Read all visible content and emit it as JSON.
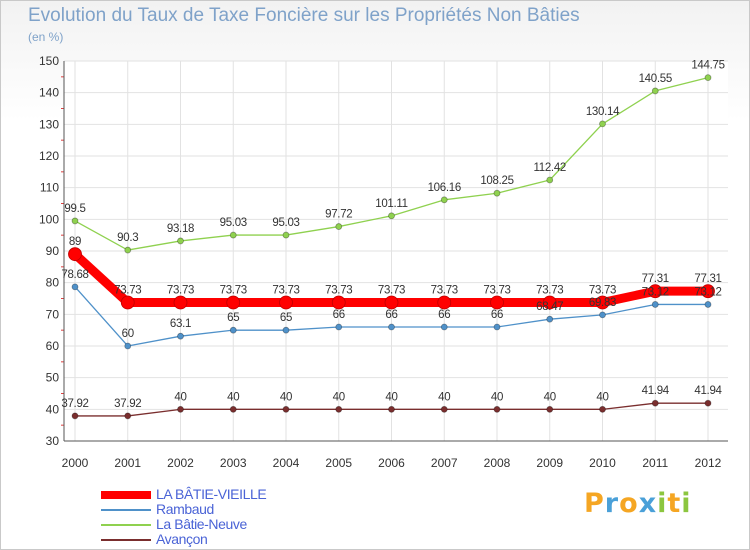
{
  "title": "Evolution du Taux de Taxe Foncière sur les Propriétés Non Bâties",
  "subtitle": "(en %)",
  "brand": {
    "letters": [
      "P",
      "r",
      "o",
      "x",
      "i",
      "t",
      "i"
    ],
    "colors": [
      "#f5a623",
      "#4aa0d8",
      "#f5a623",
      "#4aa0d8",
      "#8cc63f",
      "#f5a623",
      "#8cc63f"
    ]
  },
  "chart_data": {
    "type": "line",
    "title": "Evolution du Taux de Taxe Foncière sur les Propriétés Non Bâties",
    "ylabel": "(en %)",
    "xlabel": "",
    "x": [
      "2000",
      "2001",
      "2002",
      "2003",
      "2004",
      "2005",
      "2006",
      "2007",
      "2008",
      "2009",
      "2010",
      "2011",
      "2012"
    ],
    "ylim": [
      30,
      150
    ],
    "yticks": [
      "30",
      "40",
      "50",
      "60",
      "70",
      "80",
      "90",
      "100",
      "110",
      "120",
      "130",
      "140",
      "150"
    ],
    "grid": true,
    "legend_position": "bottom-left",
    "series": [
      {
        "name": "LA BÂTIE-VIEILLE",
        "color": "#ff0000",
        "thick": true,
        "values": [
          89,
          73.73,
          73.73,
          73.73,
          73.73,
          73.73,
          73.73,
          73.73,
          73.73,
          73.73,
          73.73,
          77.31,
          77.31
        ],
        "labels": [
          "89",
          "73.73",
          "73.73",
          "73.73",
          "73.73",
          "73.73",
          "73.73",
          "73.73",
          "73.73",
          "73.73",
          "73.73",
          "77.31",
          "77.31"
        ]
      },
      {
        "name": "Rambaud",
        "color": "#4f91c9",
        "thick": false,
        "values": [
          78.68,
          60,
          63.1,
          65,
          65,
          66,
          66,
          66,
          66,
          68.47,
          69.83,
          73.12,
          73.12
        ],
        "labels": [
          "78.68",
          "60",
          "63.1",
          "65",
          "65",
          "66",
          "66",
          "66",
          "66",
          "68.47",
          "69.83",
          "73.12",
          "73.12"
        ]
      },
      {
        "name": "La Bâtie-Neuve",
        "color": "#8fd14f",
        "thick": false,
        "values": [
          99.5,
          90.3,
          93.18,
          95.03,
          95.03,
          97.72,
          101.11,
          106.16,
          108.25,
          112.42,
          130.14,
          140.55,
          144.75
        ],
        "labels": [
          "99.5",
          "90.3",
          "93.18",
          "95.03",
          "95.03",
          "97.72",
          "101.11",
          "106.16",
          "108.25",
          "112.42",
          "130.14",
          "140.55",
          "144.75"
        ]
      },
      {
        "name": "Avançon",
        "color": "#7a2e2e",
        "thick": false,
        "values": [
          37.92,
          37.92,
          40,
          40,
          40,
          40,
          40,
          40,
          40,
          40,
          40,
          41.94,
          41.94
        ],
        "labels": [
          "37.92",
          "37.92",
          "40",
          "40",
          "40",
          "40",
          "40",
          "40",
          "40",
          "40",
          "40",
          "41.94",
          "41.94"
        ]
      }
    ]
  }
}
